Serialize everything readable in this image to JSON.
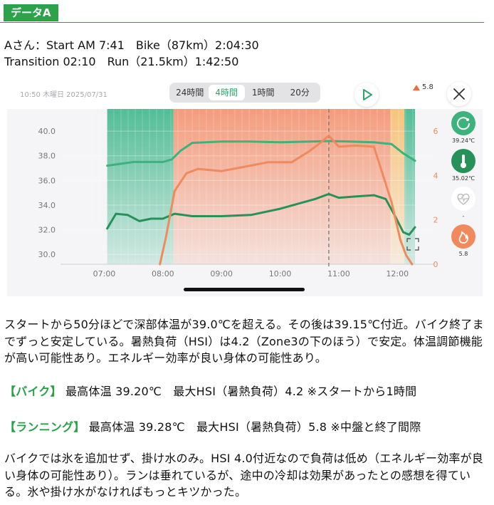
{
  "header": {
    "tag": "データA"
  },
  "summary": {
    "line1": "Aさん：Start AM 7:41　Bike（87km）2:04:30",
    "line2": "Transition 02:10　Run（21.5km）1:42:50"
  },
  "app": {
    "timestamp": "10:50 木曜日 2025/07/31",
    "segments": [
      "24時間",
      "4時間",
      "1時間",
      "20分"
    ],
    "active_segment": 1,
    "risk_value": "5.8",
    "side_values": [
      "39.24℃",
      "35.02℃",
      "-",
      "5.8"
    ],
    "colors": {
      "accent": "#2fa56b",
      "core": "#3db27d",
      "skin": "#26925a",
      "hsi": "#f08a5d"
    }
  },
  "chart_data": {
    "type": "line",
    "title": "",
    "xlabel": "",
    "ylabel": "",
    "x_ticks": [
      "07:00",
      "08:00",
      "09:00",
      "10:00",
      "11:00",
      "12:00"
    ],
    "x_range": [
      6.8,
      12.3
    ],
    "y_left_ticks": [
      "30.0",
      "32.0",
      "34.0",
      "36.0",
      "38.0",
      "40.0"
    ],
    "y_left_range": [
      29.2,
      41.8
    ],
    "y_right_ticks": [
      "0",
      "2",
      "4",
      "6"
    ],
    "y_right_range": [
      0,
      7
    ],
    "grid": true,
    "zones": [
      {
        "from": 7.05,
        "to": 8.18,
        "color": "#52bd96"
      },
      {
        "from": 8.18,
        "to": 11.88,
        "color": "#f39c7d"
      },
      {
        "from": 11.88,
        "to": 12.12,
        "color": "#f6c47d"
      },
      {
        "from": 12.12,
        "to": 12.3,
        "color": "#52bd96"
      }
    ],
    "marker_x": 10.83,
    "series": [
      {
        "axis": "left",
        "color": "#3db27d",
        "x": [
          7.05,
          7.5,
          8.0,
          8.15,
          8.3,
          8.5,
          9.0,
          9.5,
          10.0,
          10.5,
          10.83,
          11.2,
          11.6,
          11.9,
          12.1,
          12.3
        ],
        "y": [
          37.2,
          37.5,
          37.5,
          37.7,
          38.4,
          39.05,
          39.15,
          39.15,
          39.1,
          39.15,
          39.2,
          39.15,
          39.1,
          38.95,
          38.2,
          37.6
        ]
      },
      {
        "axis": "left",
        "color": "#26925a",
        "x": [
          7.05,
          7.2,
          7.4,
          7.6,
          7.8,
          8.0,
          8.2,
          8.5,
          9.0,
          9.5,
          10.0,
          10.3,
          10.6,
          10.83,
          11.0,
          11.3,
          11.6,
          11.8,
          11.95,
          12.1,
          12.2,
          12.3
        ],
        "y": [
          32.1,
          33.3,
          33.2,
          32.7,
          32.9,
          32.9,
          33.3,
          33.1,
          33.1,
          33.2,
          33.7,
          34.1,
          34.5,
          34.9,
          34.6,
          34.7,
          34.8,
          34.5,
          33.2,
          31.8,
          31.6,
          32.2
        ]
      },
      {
        "axis": "right",
        "color": "#f08a5d",
        "x": [
          7.95,
          8.05,
          8.2,
          8.4,
          8.6,
          9.0,
          9.4,
          9.8,
          10.2,
          10.5,
          10.7,
          10.83,
          11.0,
          11.3,
          11.6,
          11.9,
          12.05,
          12.15,
          12.25
        ],
        "y": [
          0.0,
          1.2,
          3.3,
          4.1,
          4.3,
          4.2,
          4.4,
          4.6,
          4.6,
          5.1,
          5.5,
          5.8,
          5.3,
          5.35,
          5.3,
          2.8,
          1.1,
          0.4,
          0.0
        ]
      }
    ]
  },
  "paragraphs": {
    "p1": "スタートから50分ほどで深部体温が39.0℃を超える。その後は39.15℃付近。バイク終了までずっと安定している。暑熱負荷（HSI）は4.2（Zone3の下のほう）で安定。体温調節機能が高い可能性あり。エネルギー効率が良い身体の可能性あり。",
    "bike_label": "【バイク】",
    "bike_text": "最高体温 39.20℃　最大HSI（暑熱負荷）4.2 ※スタートから1時間",
    "run_label": "【ランニング】",
    "run_text": "最高体温 39.28℃　最大HSI（暑熱負荷）5.8 ※中盤と終了間際",
    "p4": "バイクでは氷を追加せず、掛け水のみ。HSI 4.0付近なので負荷は低め（エネルギー効率が良い身体の可能性あり）。ランは垂れているが、途中の冷却は効果があったとの感想を得ている。氷や掛け水がなければもっとキツかった。"
  }
}
